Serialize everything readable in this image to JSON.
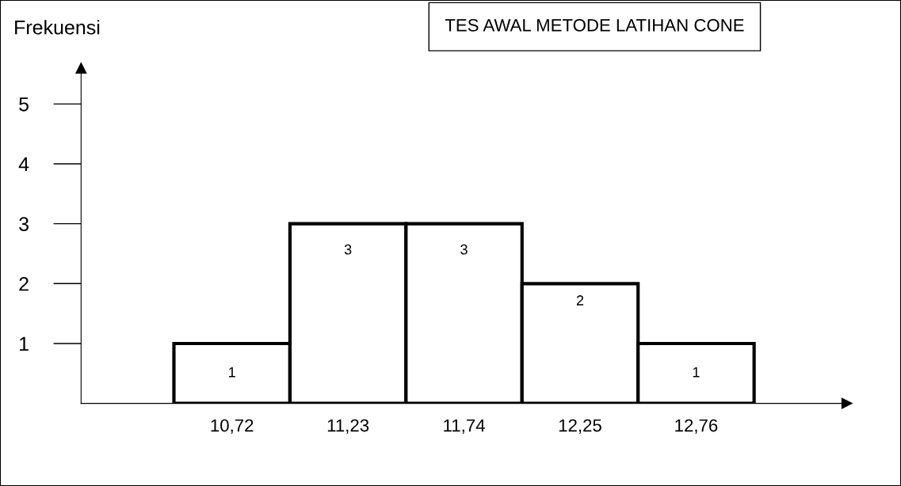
{
  "chart_data": {
    "type": "bar",
    "title": "TES AWAL METODE LATIHAN CONE",
    "ylabel": "Frekuensi",
    "categories": [
      "10,72",
      "11,23",
      "11,74",
      "12,25",
      "12,76"
    ],
    "values": [
      1,
      3,
      3,
      2,
      1
    ],
    "color": "#ffffff",
    "ylim": [
      0,
      5.6
    ],
    "yticks": [
      1,
      2,
      3,
      4,
      5
    ],
    "data_labels": true,
    "grid": false
  }
}
